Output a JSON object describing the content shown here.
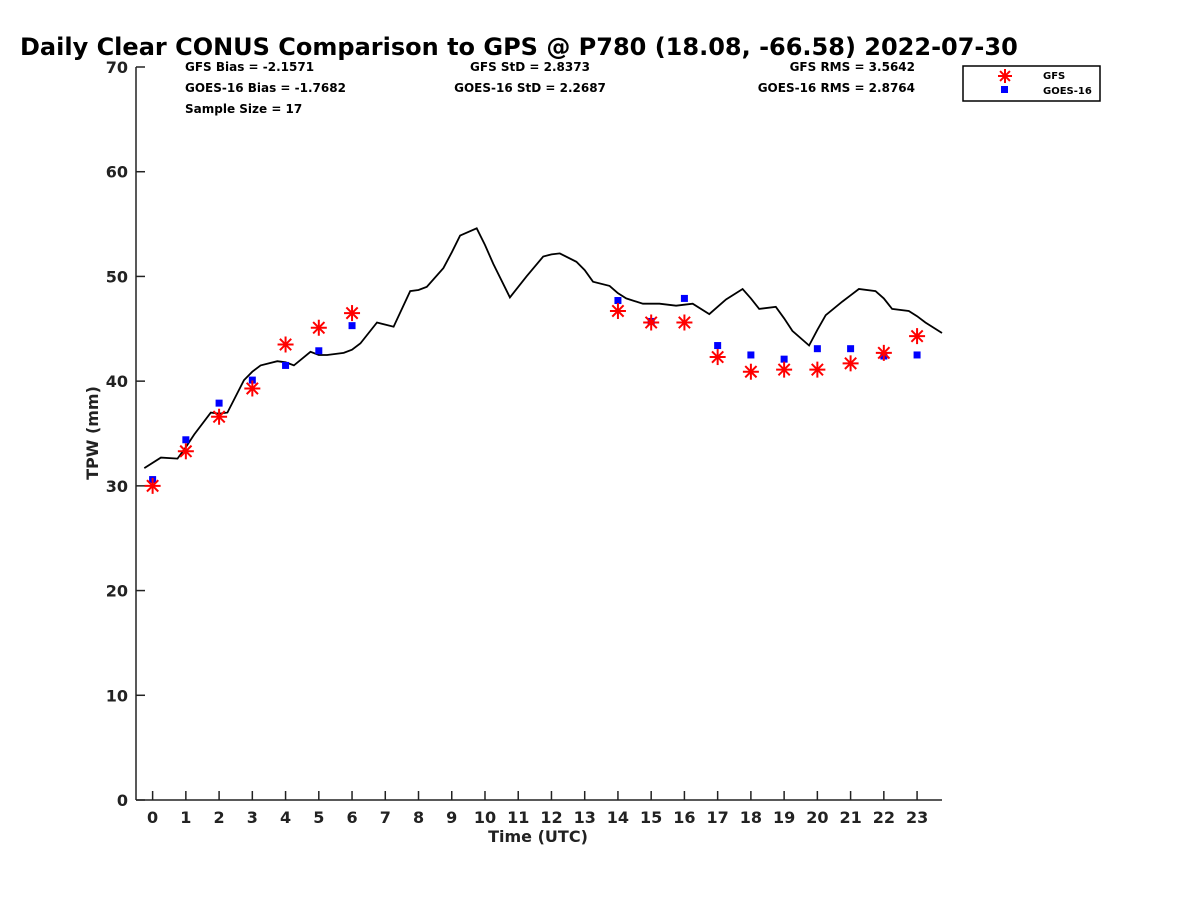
{
  "chart_data": {
    "type": "scatter",
    "title": "Daily Clear CONUS Comparison to GPS @ P780 (18.08, -66.58) 2022-07-30",
    "xlabel": "Time (UTC)",
    "ylabel": "TPW (mm)",
    "xlim": [
      -0.5,
      23.75
    ],
    "ylim": [
      0,
      70
    ],
    "x_ticks": [
      0,
      1,
      2,
      3,
      4,
      5,
      6,
      7,
      8,
      9,
      10,
      11,
      12,
      13,
      14,
      15,
      16,
      17,
      18,
      19,
      20,
      21,
      22,
      23
    ],
    "y_ticks": [
      0,
      10,
      20,
      30,
      40,
      50,
      60,
      70
    ],
    "grid": false,
    "legend_position": "top-right",
    "stats": {
      "gfs_bias": "GFS Bias = -2.1571",
      "goes_bias": "GOES-16 Bias = -1.7682",
      "sample_size": "Sample Size = 17",
      "gfs_std": "GFS StD = 2.8373",
      "goes_std": "GOES-16 StD = 2.2687",
      "gfs_rms": "GFS RMS = 3.5642",
      "goes_rms": "GOES-16 RMS = 2.8764"
    },
    "series": [
      {
        "name": "GFS",
        "marker": "asterisk",
        "color": "#ff0000",
        "x": [
          0,
          1,
          2,
          3,
          4,
          5,
          6,
          14,
          15,
          16,
          17,
          18,
          19,
          20,
          21,
          22,
          23
        ],
        "y": [
          30.0,
          33.3,
          36.6,
          39.3,
          43.5,
          45.1,
          46.5,
          46.7,
          45.6,
          45.6,
          42.3,
          40.9,
          41.1,
          41.1,
          41.7,
          42.7,
          44.3
        ]
      },
      {
        "name": "GOES-16",
        "marker": "square",
        "color": "#0000ff",
        "x": [
          0,
          1,
          2,
          3,
          4,
          5,
          6,
          14,
          15,
          16,
          17,
          18,
          19,
          20,
          21,
          22,
          23
        ],
        "y": [
          30.6,
          34.4,
          37.9,
          40.1,
          41.5,
          42.9,
          45.3,
          47.7,
          45.7,
          47.9,
          43.4,
          42.5,
          42.1,
          43.1,
          43.1,
          42.4,
          42.5
        ]
      },
      {
        "marker": "line",
        "color": "#000000",
        "x": [
          -0.25,
          0.25,
          0.75,
          1.0,
          1.25,
          1.75,
          2.0,
          2.25,
          2.75,
          3.0,
          3.25,
          3.75,
          4.0,
          4.25,
          4.75,
          5.0,
          5.25,
          5.75,
          6.0,
          6.25,
          6.75,
          7.0,
          7.25,
          7.75,
          8.0,
          8.25,
          8.75,
          9.0,
          9.25,
          9.75,
          10.0,
          10.25,
          10.75,
          11.0,
          11.25,
          11.75,
          12.0,
          12.25,
          12.75,
          13.0,
          13.25,
          13.75,
          14.0,
          14.25,
          14.75,
          15.0,
          15.25,
          15.75,
          16.0,
          16.25,
          16.75,
          17.0,
          17.25,
          17.75,
          18.0,
          18.25,
          18.75,
          19.0,
          19.25,
          19.75,
          20.0,
          20.25,
          20.75,
          21.0,
          21.25,
          21.75,
          22.0,
          22.25,
          22.75,
          23.0,
          23.25,
          23.75
        ],
        "y": [
          31.7,
          32.7,
          32.6,
          33.7,
          34.9,
          37.0,
          36.9,
          37.0,
          40.1,
          40.9,
          41.5,
          41.9,
          41.8,
          41.5,
          42.8,
          42.5,
          42.5,
          42.7,
          43.0,
          43.6,
          45.6,
          45.4,
          45.2,
          48.6,
          48.7,
          49.0,
          50.8,
          52.3,
          53.9,
          54.6,
          53.0,
          51.2,
          48.0,
          49.0,
          50.0,
          51.9,
          52.1,
          52.2,
          51.4,
          50.6,
          49.5,
          49.1,
          48.4,
          47.9,
          47.4,
          47.4,
          47.4,
          47.2,
          47.3,
          47.4,
          46.4,
          47.1,
          47.8,
          48.8,
          47.9,
          46.9,
          47.1,
          46.0,
          44.8,
          43.4,
          44.9,
          46.3,
          47.6,
          48.2,
          48.8,
          48.6,
          47.9,
          46.9,
          46.7,
          46.2,
          45.6,
          44.6
        ]
      }
    ]
  }
}
